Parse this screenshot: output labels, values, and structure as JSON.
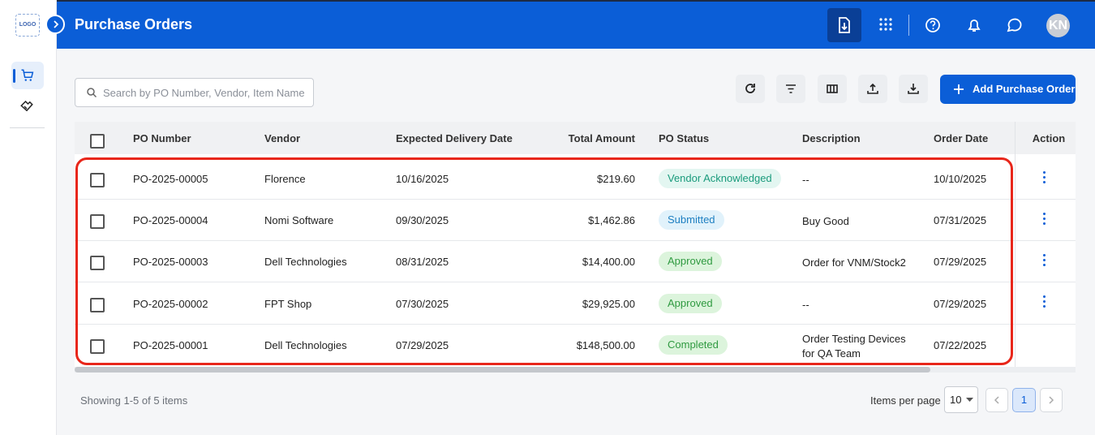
{
  "sidebar": {
    "logo": "LOGO"
  },
  "header": {
    "title": "Purchase Orders",
    "avatar": "KN"
  },
  "toolbar": {
    "search_placeholder": "Search by PO Number, Vendor, Item Name",
    "add_button": "Add Purchase Order"
  },
  "table": {
    "columns": [
      "PO Number",
      "Vendor",
      "Expected Delivery Date",
      "Total Amount",
      "PO Status",
      "Description",
      "Order Date",
      "Action"
    ],
    "rows": [
      {
        "po_number": "PO-2025-00005",
        "vendor": "Florence",
        "expected_delivery": "10/16/2025",
        "total": "$219.60",
        "status": {
          "label": "Vendor Acknowledged",
          "color": "#1a9b7c",
          "background": "#e3f6f1"
        },
        "description": "--",
        "order_date": "10/10/2025",
        "menu": true
      },
      {
        "po_number": "PO-2025-00004",
        "vendor": "Nomi Software",
        "expected_delivery": "09/30/2025",
        "total": "$1,462.86",
        "status": {
          "label": "Submitted",
          "color": "#1d7fc1",
          "background": "#e1f2fb"
        },
        "description": "Buy Good",
        "order_date": "07/31/2025",
        "menu": true
      },
      {
        "po_number": "PO-2025-00003",
        "vendor": "Dell Technologies",
        "expected_delivery": "08/31/2025",
        "total": "$14,400.00",
        "status": {
          "label": "Approved",
          "color": "#2f9a40",
          "background": "#dcf4dc"
        },
        "description": "Order for VNM/Stock2",
        "order_date": "07/29/2025",
        "menu": true
      },
      {
        "po_number": "PO-2025-00002",
        "vendor": "FPT Shop",
        "expected_delivery": "07/30/2025",
        "total": "$29,925.00",
        "status": {
          "label": "Approved",
          "color": "#2f9a40",
          "background": "#dcf4dc"
        },
        "description": "--",
        "order_date": "07/29/2025",
        "menu": true
      },
      {
        "po_number": "PO-2025-00001",
        "vendor": "Dell Technologies",
        "expected_delivery": "07/29/2025",
        "total": "$148,500.00",
        "status": {
          "label": "Completed",
          "color": "#2f9a40",
          "background": "#dcf4dc"
        },
        "description": "Order Testing Devices for QA Team",
        "order_date": "07/22/2025",
        "menu": false
      }
    ]
  },
  "footer": {
    "summary": "Showing 1-5 of 5 items",
    "items_per_page_label": "Items per page",
    "items_per_page": 10,
    "current_page": 1
  }
}
